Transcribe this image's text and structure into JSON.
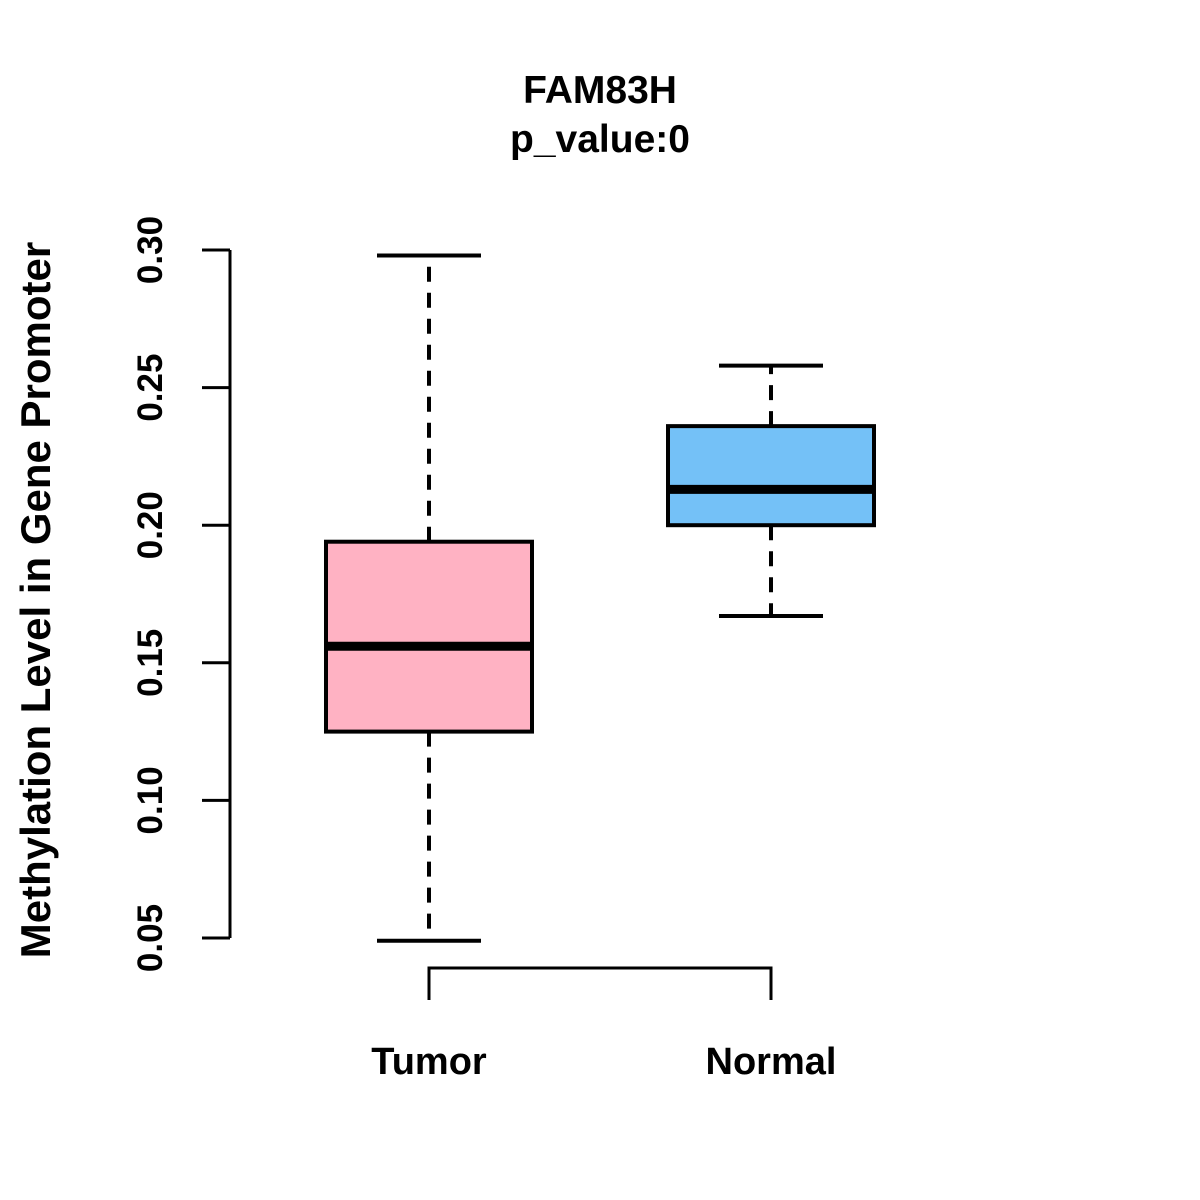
{
  "title": "FAM83H",
  "subtitle": "p_value:0",
  "chart_data": {
    "type": "boxplot",
    "title": "FAM83H",
    "subtitle": "p_value:0",
    "xlabel": "",
    "ylabel": "Methylation Level in Gene Promoter",
    "ylim": [
      0.05,
      0.3
    ],
    "yticks": [
      0.05,
      0.1,
      0.15,
      0.2,
      0.25,
      0.3
    ],
    "ytick_labels": [
      "0.05",
      "0.10",
      "0.15",
      "0.20",
      "0.25",
      "0.30"
    ],
    "grid": false,
    "legend": "none",
    "background_color": "#ffffff",
    "axis_color": "#000000",
    "categories": [
      "Tumor",
      "Normal"
    ],
    "series": [
      {
        "name": "Tumor",
        "fill_color": "#FFB2C3",
        "border_color": "#000000",
        "whisker_low": 0.049,
        "q1": 0.125,
        "median": 0.156,
        "q3": 0.194,
        "whisker_high": 0.298
      },
      {
        "name": "Normal",
        "fill_color": "#74C1F7",
        "border_color": "#000000",
        "whisker_low": 0.167,
        "q1": 0.2,
        "median": 0.213,
        "q3": 0.236,
        "whisker_high": 0.258
      }
    ],
    "whisker_style": "dashed",
    "median_color": "#000000",
    "comparison_bracket": {
      "between": [
        "Tumor",
        "Normal"
      ],
      "position": "below-plot"
    }
  }
}
